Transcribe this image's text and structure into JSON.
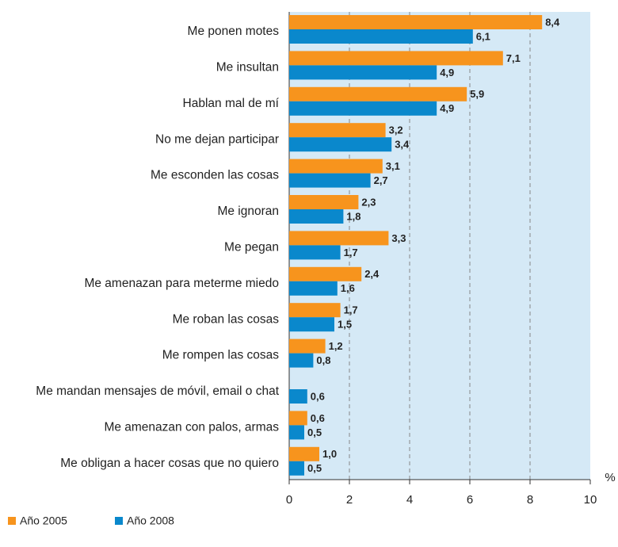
{
  "chart_data": {
    "type": "hbar",
    "categories": [
      "Me ponen motes",
      "Me insultan",
      "Hablan mal de mí",
      "No me dejan participar",
      "Me esconden las cosas",
      "Me ignoran",
      "Me pegan",
      "Me amenazan para meterme miedo",
      "Me roban las cosas",
      "Me rompen las cosas",
      "Me mandan mensajes de móvil, email o chat",
      "Me amenazan con palos, armas",
      "Me obligan a hacer cosas que no quiero"
    ],
    "series": [
      {
        "name": "Año 2005",
        "color": "#f7941d",
        "values": [
          8.4,
          7.1,
          5.9,
          3.2,
          3.1,
          2.3,
          3.3,
          2.4,
          1.7,
          1.2,
          null,
          0.6,
          1.0
        ],
        "value_labels": [
          "8,4",
          "7,1",
          "5,9",
          "3,2",
          "3,1",
          "2,3",
          "3,3",
          "2,4",
          "1,7",
          "1,2",
          null,
          "0,6",
          "1,0"
        ]
      },
      {
        "name": "Año 2008",
        "color": "#0a88cc",
        "values": [
          6.1,
          4.9,
          4.9,
          3.4,
          2.7,
          1.8,
          1.7,
          1.6,
          1.5,
          0.8,
          0.6,
          0.5,
          0.5
        ],
        "value_labels": [
          "6,1",
          "4,9",
          "4,9",
          "3,4",
          "2,7",
          "1,8",
          "1,7",
          "1,6",
          "1,5",
          "0,8",
          "0,6",
          "0,5",
          "0,5"
        ]
      }
    ],
    "xlabel": "%",
    "xlim": [
      0,
      10
    ],
    "xticks": [
      0,
      2,
      4,
      6,
      8,
      10
    ],
    "grid": true,
    "legend": "bottom-left"
  }
}
